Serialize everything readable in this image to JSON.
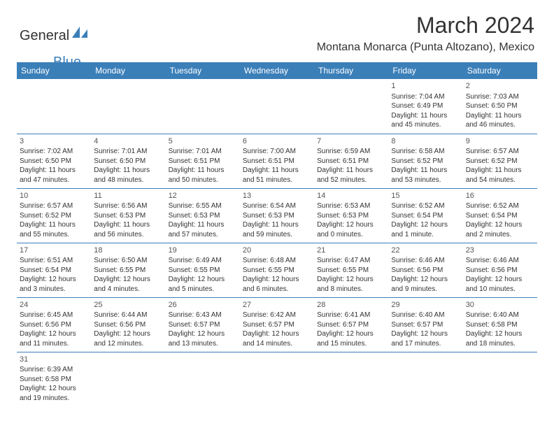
{
  "logo": {
    "text_general": "General",
    "text_blue": "Blue",
    "shape_color": "#3b7fb9"
  },
  "title": "March 2024",
  "location": "Montana Monarca (Punta Altozano), Mexico",
  "header_bg": "#3b7fb9",
  "header_fg": "#ffffff",
  "border_color": "#3b7fb9",
  "text_color": "#333333",
  "font_family": "Arial, Helvetica, sans-serif",
  "title_fontsize": 32,
  "location_fontsize": 16,
  "dayhead_fontsize": 12,
  "cell_fontsize": 10,
  "days_of_week": [
    "Sunday",
    "Monday",
    "Tuesday",
    "Wednesday",
    "Thursday",
    "Friday",
    "Saturday"
  ],
  "weeks": [
    [
      null,
      null,
      null,
      null,
      null,
      {
        "n": "1",
        "sr": "Sunrise: 7:04 AM",
        "ss": "Sunset: 6:49 PM",
        "d1": "Daylight: 11 hours",
        "d2": "and 45 minutes."
      },
      {
        "n": "2",
        "sr": "Sunrise: 7:03 AM",
        "ss": "Sunset: 6:50 PM",
        "d1": "Daylight: 11 hours",
        "d2": "and 46 minutes."
      }
    ],
    [
      {
        "n": "3",
        "sr": "Sunrise: 7:02 AM",
        "ss": "Sunset: 6:50 PM",
        "d1": "Daylight: 11 hours",
        "d2": "and 47 minutes."
      },
      {
        "n": "4",
        "sr": "Sunrise: 7:01 AM",
        "ss": "Sunset: 6:50 PM",
        "d1": "Daylight: 11 hours",
        "d2": "and 48 minutes."
      },
      {
        "n": "5",
        "sr": "Sunrise: 7:01 AM",
        "ss": "Sunset: 6:51 PM",
        "d1": "Daylight: 11 hours",
        "d2": "and 50 minutes."
      },
      {
        "n": "6",
        "sr": "Sunrise: 7:00 AM",
        "ss": "Sunset: 6:51 PM",
        "d1": "Daylight: 11 hours",
        "d2": "and 51 minutes."
      },
      {
        "n": "7",
        "sr": "Sunrise: 6:59 AM",
        "ss": "Sunset: 6:51 PM",
        "d1": "Daylight: 11 hours",
        "d2": "and 52 minutes."
      },
      {
        "n": "8",
        "sr": "Sunrise: 6:58 AM",
        "ss": "Sunset: 6:52 PM",
        "d1": "Daylight: 11 hours",
        "d2": "and 53 minutes."
      },
      {
        "n": "9",
        "sr": "Sunrise: 6:57 AM",
        "ss": "Sunset: 6:52 PM",
        "d1": "Daylight: 11 hours",
        "d2": "and 54 minutes."
      }
    ],
    [
      {
        "n": "10",
        "sr": "Sunrise: 6:57 AM",
        "ss": "Sunset: 6:52 PM",
        "d1": "Daylight: 11 hours",
        "d2": "and 55 minutes."
      },
      {
        "n": "11",
        "sr": "Sunrise: 6:56 AM",
        "ss": "Sunset: 6:53 PM",
        "d1": "Daylight: 11 hours",
        "d2": "and 56 minutes."
      },
      {
        "n": "12",
        "sr": "Sunrise: 6:55 AM",
        "ss": "Sunset: 6:53 PM",
        "d1": "Daylight: 11 hours",
        "d2": "and 57 minutes."
      },
      {
        "n": "13",
        "sr": "Sunrise: 6:54 AM",
        "ss": "Sunset: 6:53 PM",
        "d1": "Daylight: 11 hours",
        "d2": "and 59 minutes."
      },
      {
        "n": "14",
        "sr": "Sunrise: 6:53 AM",
        "ss": "Sunset: 6:53 PM",
        "d1": "Daylight: 12 hours",
        "d2": "and 0 minutes."
      },
      {
        "n": "15",
        "sr": "Sunrise: 6:52 AM",
        "ss": "Sunset: 6:54 PM",
        "d1": "Daylight: 12 hours",
        "d2": "and 1 minute."
      },
      {
        "n": "16",
        "sr": "Sunrise: 6:52 AM",
        "ss": "Sunset: 6:54 PM",
        "d1": "Daylight: 12 hours",
        "d2": "and 2 minutes."
      }
    ],
    [
      {
        "n": "17",
        "sr": "Sunrise: 6:51 AM",
        "ss": "Sunset: 6:54 PM",
        "d1": "Daylight: 12 hours",
        "d2": "and 3 minutes."
      },
      {
        "n": "18",
        "sr": "Sunrise: 6:50 AM",
        "ss": "Sunset: 6:55 PM",
        "d1": "Daylight: 12 hours",
        "d2": "and 4 minutes."
      },
      {
        "n": "19",
        "sr": "Sunrise: 6:49 AM",
        "ss": "Sunset: 6:55 PM",
        "d1": "Daylight: 12 hours",
        "d2": "and 5 minutes."
      },
      {
        "n": "20",
        "sr": "Sunrise: 6:48 AM",
        "ss": "Sunset: 6:55 PM",
        "d1": "Daylight: 12 hours",
        "d2": "and 6 minutes."
      },
      {
        "n": "21",
        "sr": "Sunrise: 6:47 AM",
        "ss": "Sunset: 6:55 PM",
        "d1": "Daylight: 12 hours",
        "d2": "and 8 minutes."
      },
      {
        "n": "22",
        "sr": "Sunrise: 6:46 AM",
        "ss": "Sunset: 6:56 PM",
        "d1": "Daylight: 12 hours",
        "d2": "and 9 minutes."
      },
      {
        "n": "23",
        "sr": "Sunrise: 6:46 AM",
        "ss": "Sunset: 6:56 PM",
        "d1": "Daylight: 12 hours",
        "d2": "and 10 minutes."
      }
    ],
    [
      {
        "n": "24",
        "sr": "Sunrise: 6:45 AM",
        "ss": "Sunset: 6:56 PM",
        "d1": "Daylight: 12 hours",
        "d2": "and 11 minutes."
      },
      {
        "n": "25",
        "sr": "Sunrise: 6:44 AM",
        "ss": "Sunset: 6:56 PM",
        "d1": "Daylight: 12 hours",
        "d2": "and 12 minutes."
      },
      {
        "n": "26",
        "sr": "Sunrise: 6:43 AM",
        "ss": "Sunset: 6:57 PM",
        "d1": "Daylight: 12 hours",
        "d2": "and 13 minutes."
      },
      {
        "n": "27",
        "sr": "Sunrise: 6:42 AM",
        "ss": "Sunset: 6:57 PM",
        "d1": "Daylight: 12 hours",
        "d2": "and 14 minutes."
      },
      {
        "n": "28",
        "sr": "Sunrise: 6:41 AM",
        "ss": "Sunset: 6:57 PM",
        "d1": "Daylight: 12 hours",
        "d2": "and 15 minutes."
      },
      {
        "n": "29",
        "sr": "Sunrise: 6:40 AM",
        "ss": "Sunset: 6:57 PM",
        "d1": "Daylight: 12 hours",
        "d2": "and 17 minutes."
      },
      {
        "n": "30",
        "sr": "Sunrise: 6:40 AM",
        "ss": "Sunset: 6:58 PM",
        "d1": "Daylight: 12 hours",
        "d2": "and 18 minutes."
      }
    ],
    [
      {
        "n": "31",
        "sr": "Sunrise: 6:39 AM",
        "ss": "Sunset: 6:58 PM",
        "d1": "Daylight: 12 hours",
        "d2": "and 19 minutes."
      },
      null,
      null,
      null,
      null,
      null,
      null
    ]
  ]
}
